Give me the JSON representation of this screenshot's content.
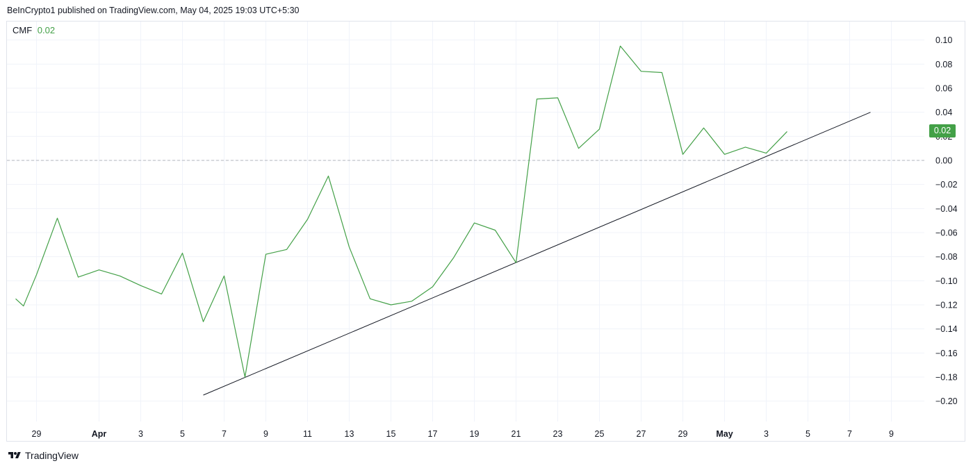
{
  "header": {
    "published": "BeInCrypto1 published on TradingView.com, May 04, 2025 19:03 UTC+5:30"
  },
  "legend": {
    "name": "CMF",
    "value": "0.02"
  },
  "price_badge": "0.02",
  "footer": {
    "brand": "TradingView",
    "logo_icon": "tradingview-logo-icon"
  },
  "colors": {
    "series": "#43a047",
    "trendline": "#131722",
    "zero_line": "#b2b5be",
    "grid": "#f0f3fa"
  },
  "chart_data": {
    "type": "line",
    "title": "",
    "xlabel": "",
    "ylabel": "",
    "ylim": [
      -0.22,
      0.1
    ],
    "y_ticks": [
      "0.10",
      "0.08",
      "0.06",
      "0.04",
      "0.02",
      "0.00",
      "−0.02",
      "−0.04",
      "−0.06",
      "−0.08",
      "−0.10",
      "−0.12",
      "−0.14",
      "−0.16",
      "−0.18",
      "−0.20"
    ],
    "x_ticks": [
      {
        "label": "29",
        "date": "2025-03-29"
      },
      {
        "label": "Apr",
        "date": "2025-04-01",
        "bold": true
      },
      {
        "label": "3",
        "date": "2025-04-03"
      },
      {
        "label": "5",
        "date": "2025-04-05"
      },
      {
        "label": "7",
        "date": "2025-04-07"
      },
      {
        "label": "9",
        "date": "2025-04-09"
      },
      {
        "label": "11",
        "date": "2025-04-11"
      },
      {
        "label": "13",
        "date": "2025-04-13"
      },
      {
        "label": "15",
        "date": "2025-04-15"
      },
      {
        "label": "17",
        "date": "2025-04-17"
      },
      {
        "label": "19",
        "date": "2025-04-19"
      },
      {
        "label": "21",
        "date": "2025-04-21"
      },
      {
        "label": "23",
        "date": "2025-04-23"
      },
      {
        "label": "25",
        "date": "2025-04-25"
      },
      {
        "label": "27",
        "date": "2025-04-27"
      },
      {
        "label": "29",
        "date": "2025-04-29"
      },
      {
        "label": "May",
        "date": "2025-05-01",
        "bold": true
      },
      {
        "label": "3",
        "date": "2025-05-03"
      },
      {
        "label": "5",
        "date": "2025-05-05"
      },
      {
        "label": "7",
        "date": "2025-05-07"
      },
      {
        "label": "9",
        "date": "2025-05-09"
      }
    ],
    "series": [
      {
        "name": "CMF",
        "points": [
          [
            "2025-03-28",
            -0.115
          ],
          [
            "2025-03-28T09:00",
            -0.121
          ],
          [
            "2025-03-29",
            -0.095
          ],
          [
            "2025-03-30",
            -0.048
          ],
          [
            "2025-03-31",
            -0.097
          ],
          [
            "2025-04-01",
            -0.091
          ],
          [
            "2025-04-02",
            -0.096
          ],
          [
            "2025-04-03",
            -0.104
          ],
          [
            "2025-04-04",
            -0.111
          ],
          [
            "2025-04-05",
            -0.077
          ],
          [
            "2025-04-06",
            -0.134
          ],
          [
            "2025-04-07",
            -0.096
          ],
          [
            "2025-04-08",
            -0.18
          ],
          [
            "2025-04-09",
            -0.078
          ],
          [
            "2025-04-10",
            -0.074
          ],
          [
            "2025-04-11",
            -0.049
          ],
          [
            "2025-04-12",
            -0.013
          ],
          [
            "2025-04-13",
            -0.072
          ],
          [
            "2025-04-14",
            -0.115
          ],
          [
            "2025-04-15",
            -0.12
          ],
          [
            "2025-04-16",
            -0.117
          ],
          [
            "2025-04-17",
            -0.105
          ],
          [
            "2025-04-18",
            -0.081
          ],
          [
            "2025-04-19",
            -0.052
          ],
          [
            "2025-04-20",
            -0.058
          ],
          [
            "2025-04-21",
            -0.085
          ],
          [
            "2025-04-22",
            0.051
          ],
          [
            "2025-04-23",
            0.052
          ],
          [
            "2025-04-24",
            0.01
          ],
          [
            "2025-04-25",
            0.026
          ],
          [
            "2025-04-26",
            0.095
          ],
          [
            "2025-04-27",
            0.074
          ],
          [
            "2025-04-28",
            0.073
          ],
          [
            "2025-04-29",
            0.005
          ],
          [
            "2025-04-30",
            0.027
          ],
          [
            "2025-05-01",
            0.005
          ],
          [
            "2025-05-02",
            0.011
          ],
          [
            "2025-05-03",
            0.006
          ],
          [
            "2025-05-04",
            0.024
          ]
        ]
      }
    ],
    "trendline": {
      "start": [
        "2025-04-06",
        -0.195
      ],
      "end": [
        "2025-05-08",
        0.04
      ]
    },
    "reference_line": {
      "y": 0.0,
      "style": "dashed"
    },
    "grid": true,
    "legend_position": "top-left"
  }
}
